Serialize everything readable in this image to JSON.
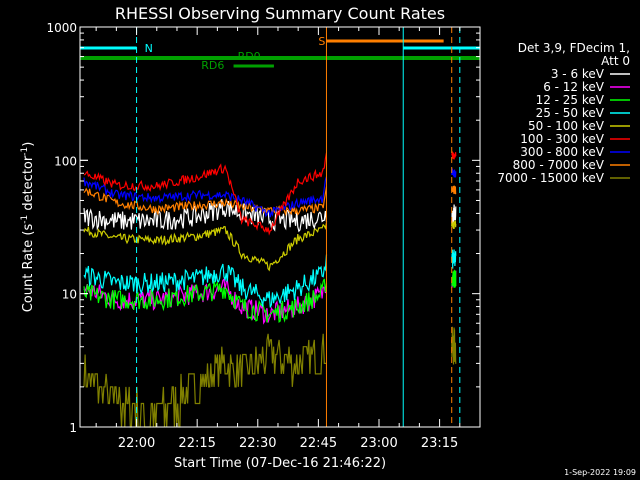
{
  "title": "RHESSI Observing Summary Count Rates",
  "xlabel": "Start Time (07-Dec-16 21:46:22)",
  "ylabel": "Count Rate (s",
  "ylabel_sup1": "-1",
  "ylabel_mid": " detector",
  "ylabel_sup2": "-1",
  "ylabel_end": ")",
  "footer_date": "1-Sep-2022 19:09",
  "legend_header": [
    "Det 3,9, FDecim 1,",
    "Att 0"
  ],
  "flags": {
    "N_label": "N",
    "S_label": "S",
    "RD0_label": "RD0",
    "RD6_label": "RD6"
  },
  "colors": {
    "bg": "#000000",
    "axis": "#ffffff",
    "night": "#00ffff",
    "saa": "#ff7f00",
    "rd": "#00a000"
  },
  "chart_data": {
    "type": "line",
    "title": "RHESSI Observing Summary Count Rates",
    "xlabel": "Start Time (07-Dec-16 21:46:22)",
    "ylabel": "Count Rate (s^-1 detector^-1)",
    "y_scale": "log",
    "ylim": [
      1,
      1000
    ],
    "xlim": [
      "21:46",
      "23:25"
    ],
    "x_ticks": [
      "22:00",
      "22:15",
      "22:30",
      "22:45",
      "23:00",
      "23:15"
    ],
    "y_ticks": [
      "1",
      "10",
      "100",
      "1000"
    ],
    "legend_position": "right",
    "series": [
      {
        "name": "3 - 6 keV",
        "color": "#ffffff",
        "x": [
          "21:47",
          "21:55",
          "22:05",
          "22:15",
          "22:22",
          "22:26",
          "22:33",
          "22:40",
          "22:46",
          "22:47"
        ],
        "y": [
          38,
          35,
          35,
          38,
          45,
          40,
          36,
          35,
          38,
          40
        ]
      },
      {
        "name": "6 - 12 keV",
        "color": "#ff00ff",
        "x": [
          "21:47",
          "21:55",
          "22:05",
          "22:15",
          "22:22",
          "22:26",
          "22:33",
          "22:40",
          "22:46",
          "22:47"
        ],
        "y": [
          11,
          9,
          9,
          10,
          11,
          8,
          7,
          8,
          10,
          13
        ]
      },
      {
        "name": "12 - 25 keV",
        "color": "#00ff00",
        "x": [
          "21:47",
          "21:55",
          "22:05",
          "22:15",
          "22:22",
          "22:26",
          "22:33",
          "22:40",
          "22:46",
          "22:47"
        ],
        "y": [
          10,
          9,
          9,
          10,
          11,
          8,
          7,
          8,
          10,
          13
        ]
      },
      {
        "name": "25 - 50 keV",
        "color": "#00ffff",
        "x": [
          "21:47",
          "21:55",
          "22:05",
          "22:15",
          "22:22",
          "22:26",
          "22:33",
          "22:40",
          "22:46",
          "22:47"
        ],
        "y": [
          14,
          12,
          12,
          13,
          15,
          11,
          9,
          11,
          14,
          18
        ]
      },
      {
        "name": "50 - 100 keV",
        "color": "#cccc00",
        "x": [
          "21:47",
          "21:55",
          "22:05",
          "22:15",
          "22:22",
          "22:26",
          "22:33",
          "22:40",
          "22:46",
          "22:47"
        ],
        "y": [
          30,
          26,
          25,
          27,
          30,
          20,
          16,
          26,
          30,
          33
        ]
      },
      {
        "name": "100 - 300 keV",
        "color": "#ff0000",
        "x": [
          "21:47",
          "21:55",
          "22:05",
          "22:15",
          "22:22",
          "22:26",
          "22:33",
          "22:40",
          "22:46",
          "22:47"
        ],
        "y": [
          80,
          65,
          64,
          75,
          88,
          36,
          30,
          70,
          80,
          110
        ]
      },
      {
        "name": "300 - 800 keV",
        "color": "#0000ff",
        "x": [
          "21:47",
          "21:55",
          "22:05",
          "22:15",
          "22:22",
          "22:26",
          "22:33",
          "22:40",
          "22:46",
          "22:47"
        ],
        "y": [
          70,
          55,
          52,
          55,
          55,
          50,
          40,
          48,
          52,
          80
        ]
      },
      {
        "name": "800 - 7000 keV",
        "color": "#ff7f00",
        "x": [
          "21:47",
          "21:55",
          "22:05",
          "22:15",
          "22:22",
          "22:26",
          "22:33",
          "22:40",
          "22:46",
          "22:47"
        ],
        "y": [
          60,
          48,
          43,
          46,
          48,
          45,
          42,
          42,
          44,
          60
        ]
      },
      {
        "name": "7000 - 15000 keV",
        "color": "#808000",
        "x": [
          "21:47",
          "21:55",
          "22:05",
          "22:15",
          "22:22",
          "22:26",
          "22:33",
          "22:40",
          "22:46",
          "22:47"
        ],
        "y": [
          2.5,
          1.5,
          1.2,
          2.0,
          3.0,
          2.5,
          3.5,
          3.0,
          3.5,
          4.0
        ]
      }
    ]
  }
}
